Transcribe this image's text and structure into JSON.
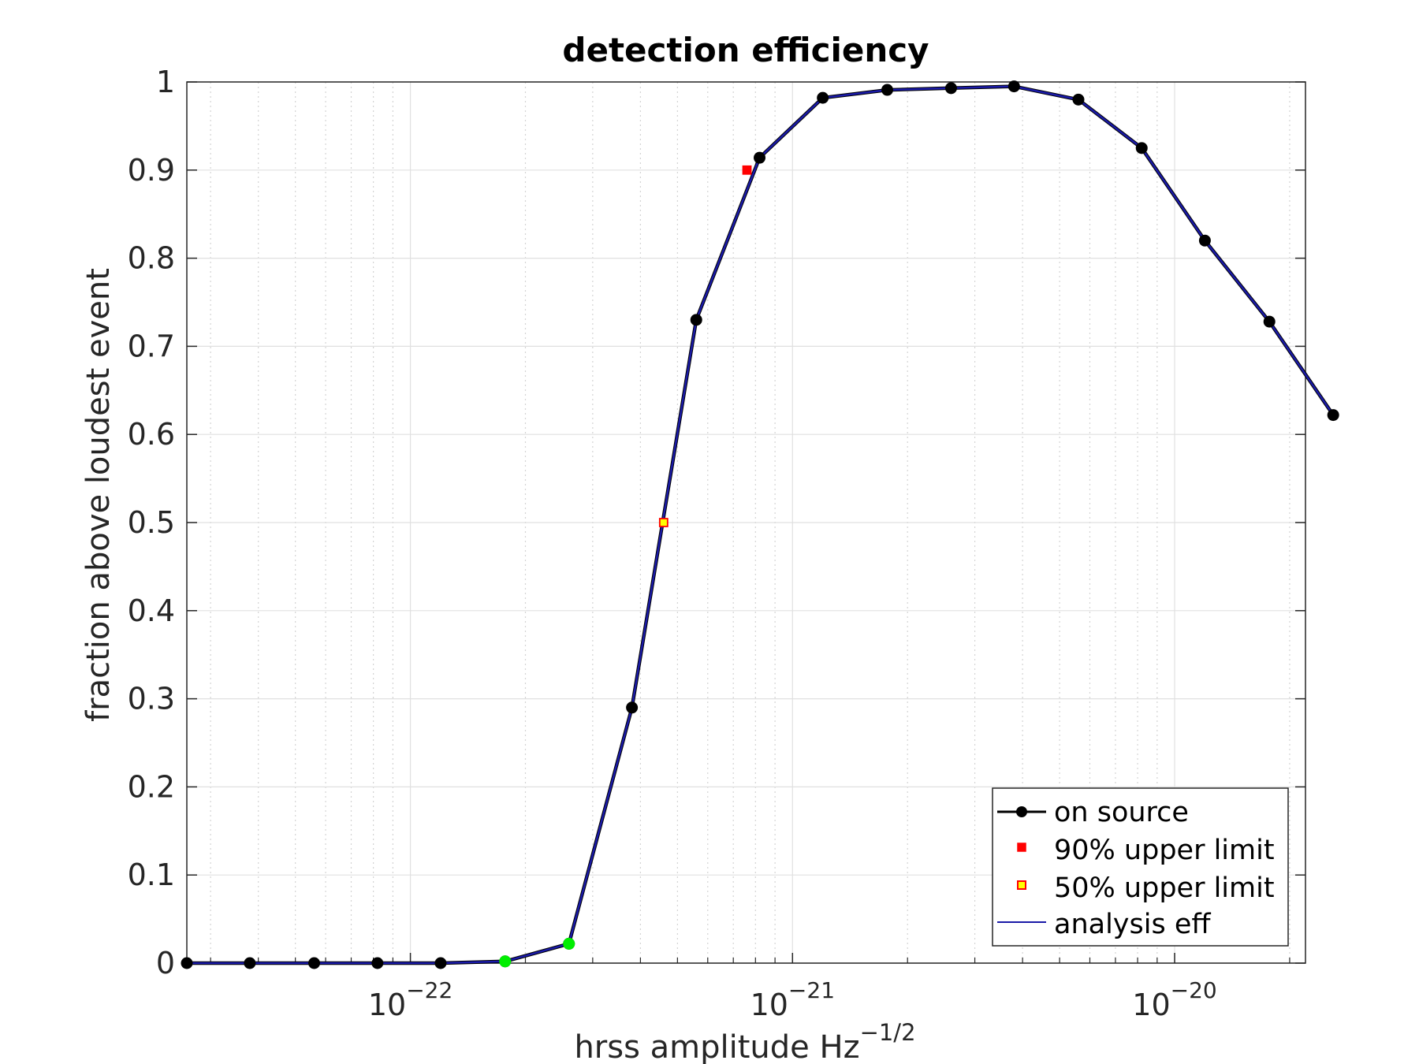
{
  "chart_data": {
    "type": "line",
    "title": "detection efficiency",
    "xlabel": "hrss amplitude Hz",
    "xlabel_sup": "−1/2",
    "ylabel": "fraction above loudest event",
    "x_scale": "log",
    "xlim": [
      2.6e-23,
      2.2e-20
    ],
    "ylim": [
      0,
      1
    ],
    "grid": true,
    "y_ticks": [
      "0",
      "0.1",
      "0.2",
      "0.3",
      "0.4",
      "0.5",
      "0.6",
      "0.7",
      "0.8",
      "0.9",
      "1"
    ],
    "x_ticks": [
      {
        "value": 1e-22,
        "base": "10",
        "exponent": "−22"
      },
      {
        "value": 1e-21,
        "base": "10",
        "exponent": "−21"
      },
      {
        "value": 1e-20,
        "base": "10",
        "exponent": "−20"
      }
    ],
    "series": [
      {
        "name": "on source",
        "color": "#000000",
        "marker": "filled-circle",
        "x": [
          2.6e-23,
          3.8e-23,
          5.6e-23,
          8.2e-23,
          1.2e-22,
          1.77e-22,
          2.6e-22,
          3.8e-22,
          5.6e-22,
          8.2e-22,
          1.2e-21,
          1.77e-21,
          2.6e-21,
          3.8e-21,
          5.6e-21,
          8.2e-21,
          1.2e-20,
          1.77e-20,
          2.6e-20
        ],
        "y": [
          0.0,
          0.0,
          0.0,
          0.0,
          0.0,
          0.002,
          0.022,
          0.29,
          0.73,
          0.914,
          0.982,
          0.991,
          0.993,
          0.995,
          0.98,
          0.925,
          0.82,
          0.728,
          0.622
        ]
      },
      {
        "name": "analysis eff",
        "color": "#1a1aa8",
        "marker": "none",
        "x": [
          2.6e-23,
          3.8e-23,
          5.6e-23,
          8.2e-23,
          1.2e-22,
          1.77e-22,
          2.6e-22,
          3.8e-22,
          5.6e-22,
          8.2e-22,
          1.2e-21,
          1.77e-21,
          2.6e-21,
          3.8e-21,
          5.6e-21,
          8.2e-21,
          1.2e-20,
          1.77e-20,
          2.6e-20
        ],
        "y": [
          0.0,
          0.0,
          0.0,
          0.0,
          0.0,
          0.002,
          0.022,
          0.29,
          0.73,
          0.914,
          0.982,
          0.991,
          0.993,
          0.995,
          0.98,
          0.925,
          0.82,
          0.728,
          0.622
        ]
      }
    ],
    "highlight_points": {
      "color": "#00ee00",
      "x": [
        1.77e-22,
        2.6e-22
      ],
      "y": [
        0.002,
        0.022
      ]
    },
    "limits": [
      {
        "name": "90% upper limit",
        "x": 7.6e-22,
        "y": 0.9,
        "fill": "#ff0000",
        "stroke": "#ff0000"
      },
      {
        "name": "50% upper limit",
        "x": 4.6e-22,
        "y": 0.5,
        "fill": "#ffff00",
        "stroke": "#ff0000"
      }
    ],
    "legend": {
      "position": "bottom-right",
      "entries": [
        "on source",
        "90% upper limit",
        "50% upper limit",
        "analysis eff"
      ]
    }
  }
}
